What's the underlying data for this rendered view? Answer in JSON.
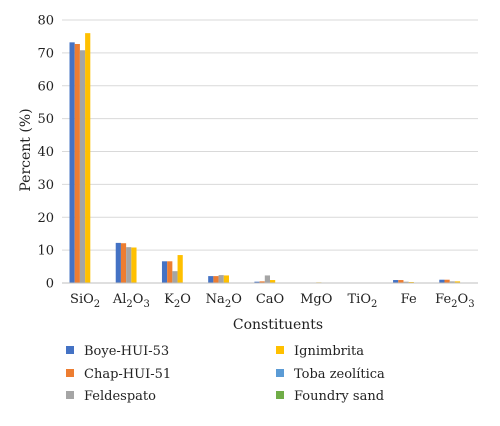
{
  "chart_data": {
    "type": "bar",
    "xlabel": "Constituents",
    "ylabel": "Percent (%)",
    "ylim": [
      0,
      80
    ],
    "yticks": [
      0,
      10,
      20,
      30,
      40,
      50,
      60,
      70,
      80
    ],
    "grid": true,
    "legend_position": "bottom",
    "categories": [
      {
        "base": "SiO",
        "sub": "2",
        "rest": ""
      },
      {
        "base": "Al",
        "sub": "2",
        "rest": "O",
        "sub2": "3"
      },
      {
        "base": "K",
        "sub": "2",
        "rest": "O"
      },
      {
        "base": "Na",
        "sub": "2",
        "rest": "O"
      },
      {
        "base": "CaO",
        "sub": "",
        "rest": ""
      },
      {
        "base": "MgO",
        "sub": "",
        "rest": ""
      },
      {
        "base": "TiO",
        "sub": "2",
        "rest": ""
      },
      {
        "base": "Fe",
        "sub": "",
        "rest": ""
      },
      {
        "base": "Fe",
        "sub": "2",
        "rest": "O",
        "sub2": "3"
      }
    ],
    "series": [
      {
        "name": "Boye-HUI-53",
        "color": "#4472c4",
        "values": [
          73.2,
          12.2,
          6.6,
          2.1,
          0.4,
          0.1,
          0.1,
          0.9,
          1.0
        ]
      },
      {
        "name": "Chap-HUI-51",
        "color": "#ed7d31",
        "values": [
          72.7,
          12.1,
          6.6,
          2.1,
          0.5,
          0.1,
          0.1,
          0.9,
          1.0
        ]
      },
      {
        "name": "Feldespato",
        "color": "#a5a5a5",
        "values": [
          70.8,
          10.9,
          3.6,
          2.4,
          2.3,
          0.1,
          0.0,
          0.4,
          0.5
        ]
      },
      {
        "name": "Ignimbrita",
        "color": "#ffc000",
        "values": [
          76.0,
          10.8,
          8.5,
          2.3,
          0.9,
          0.2,
          0.1,
          0.3,
          0.5
        ]
      },
      {
        "name": "Toba zeolítica",
        "color": "#5b9bd5",
        "values": [
          0,
          0,
          0,
          0,
          0,
          0,
          0,
          0,
          0
        ]
      },
      {
        "name": "Foundry sand",
        "color": "#70ad47",
        "values": [
          0,
          0,
          0,
          0,
          0,
          0,
          0,
          0,
          0
        ]
      }
    ]
  }
}
